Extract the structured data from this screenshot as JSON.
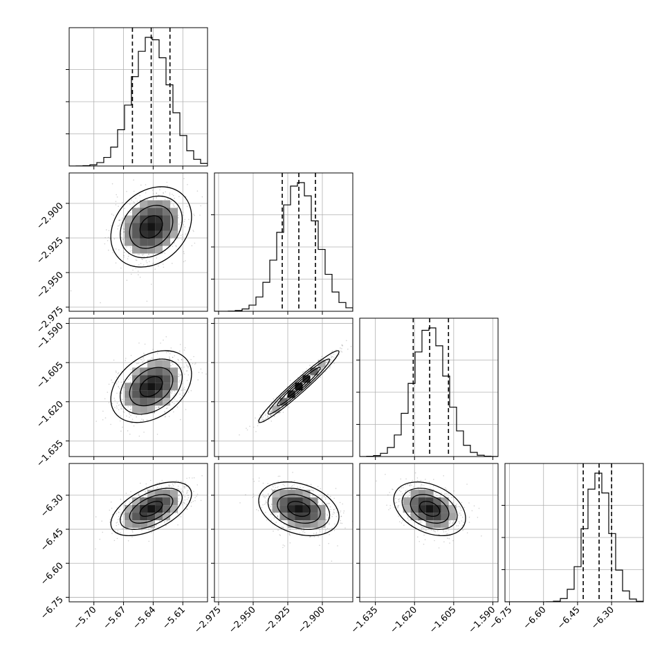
{
  "chart_data": {
    "type": "corner",
    "title": "",
    "grid": true,
    "colors": {
      "line": "#000000",
      "grid": "#b0b0b0",
      "scatter": "#7a7a7a",
      "background": "#ffffff"
    },
    "quantile_style": "dashed",
    "parameters": [
      {
        "index": 0,
        "range": [
          -5.725,
          -5.585
        ],
        "ticks": [
          -5.7,
          -5.67,
          -5.64,
          -5.61
        ],
        "tick_labels": [
          "−5.70",
          "−5.67",
          "−5.64",
          "−5.61"
        ],
        "median": -5.642,
        "mean": -5.642,
        "std": 0.019,
        "quantiles": [
          -5.661,
          -5.642,
          -5.623
        ]
      },
      {
        "index": 1,
        "range": [
          -2.978,
          -2.878
        ],
        "ticks": [
          -2.975,
          -2.95,
          -2.925,
          -2.9
        ],
        "tick_labels": [
          "−2.975",
          "−2.950",
          "−2.925",
          "−2.900"
        ],
        "median": -2.917,
        "mean": -2.917,
        "std": 0.0135,
        "quantiles": [
          -2.929,
          -2.917,
          -2.905
        ]
      },
      {
        "index": 2,
        "range": [
          -1.641,
          -1.588
        ],
        "ticks": [
          -1.635,
          -1.62,
          -1.605,
          -1.59
        ],
        "tick_labels": [
          "−1.635",
          "−1.620",
          "−1.605",
          "−1.590"
        ],
        "median": -1.6142,
        "mean": -1.6142,
        "std": 0.0064,
        "quantiles": [
          -1.6205,
          -1.6142,
          -1.607
        ]
      },
      {
        "index": 3,
        "range": [
          -6.77,
          -6.16
        ],
        "ticks": [
          -6.75,
          -6.6,
          -6.45,
          -6.3
        ],
        "tick_labels": [
          "−6.75",
          "−6.60",
          "−6.45",
          "−6.30"
        ],
        "median": -6.355,
        "mean": -6.36,
        "std": 0.055,
        "quantiles": [
          -6.425,
          -6.355,
          -6.3
        ]
      }
    ],
    "correlations": [
      [
        1.0,
        0.25,
        0.35,
        0.55
      ],
      [
        0.25,
        1.0,
        0.97,
        -0.3
      ],
      [
        0.35,
        0.97,
        1.0,
        -0.35
      ],
      [
        0.55,
        -0.3,
        -0.35,
        1.0
      ]
    ]
  }
}
